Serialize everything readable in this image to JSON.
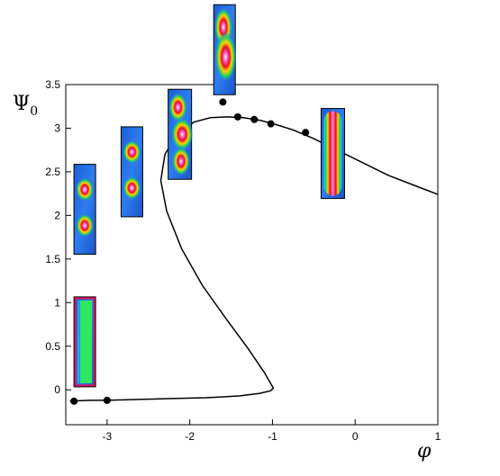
{
  "chart_data": {
    "type": "line",
    "xlabel": "φ",
    "ylabel": "Ψ",
    "ylabel_subscript": "0",
    "xlim": [
      -3.5,
      1
    ],
    "ylim": [
      -0.4,
      3.5
    ],
    "x_ticks": [
      -3,
      -2,
      -1,
      0,
      1
    ],
    "x_tick_labels": [
      "-3",
      "-2",
      "-1",
      "0",
      "1"
    ],
    "y_ticks": [
      0,
      0.5,
      1,
      1.5,
      2,
      2.5,
      3,
      3.5
    ],
    "y_tick_labels": [
      "0",
      "0.5",
      "1",
      "1.5",
      "2",
      "2.5",
      "3",
      "3.5"
    ],
    "grid": false,
    "series": [
      {
        "style": "solid-line",
        "color": "#000000",
        "x": [
          -3.45,
          -3.2,
          -3.0,
          -2.6,
          -2.2,
          -1.8,
          -1.4,
          -1.15,
          -1.02,
          -0.99,
          -1.1,
          -1.3,
          -1.55,
          -1.85,
          -2.1,
          -2.28,
          -2.35,
          -2.3,
          -2.15,
          -1.95,
          -1.75,
          -1.55,
          -1.35,
          -1.15,
          -0.95,
          -0.75,
          -0.5,
          -0.2,
          0.1,
          0.4,
          0.7,
          1.0
        ],
        "y": [
          -0.13,
          -0.12,
          -0.12,
          -0.11,
          -0.1,
          -0.09,
          -0.07,
          -0.04,
          -0.01,
          0.02,
          0.2,
          0.48,
          0.8,
          1.2,
          1.62,
          2.05,
          2.4,
          2.7,
          2.93,
          3.07,
          3.12,
          3.13,
          3.12,
          3.09,
          3.04,
          2.98,
          2.88,
          2.74,
          2.6,
          2.46,
          2.35,
          2.24
        ]
      },
      {
        "style": "markers",
        "color": "#000000",
        "x": [
          -3.4,
          -3.0,
          -1.6,
          -1.42,
          -1.22,
          -1.02,
          -0.6
        ],
        "y": [
          -0.13,
          -0.12,
          3.3,
          3.13,
          3.1,
          3.05,
          2.95
        ]
      }
    ],
    "insets": [
      {
        "pattern": "rectangle-flat",
        "x": -3.27,
        "y": 0.55
      },
      {
        "pattern": "two-blobs",
        "x": -3.27,
        "y": 2.07
      },
      {
        "pattern": "two-blobs",
        "x": -2.7,
        "y": 2.5
      },
      {
        "pattern": "wavy-chain",
        "x": -2.12,
        "y": 2.93
      },
      {
        "pattern": "elongated-chain",
        "x": -1.58,
        "y": 3.9
      },
      {
        "pattern": "single-column",
        "x": -0.27,
        "y": 2.71
      }
    ]
  }
}
